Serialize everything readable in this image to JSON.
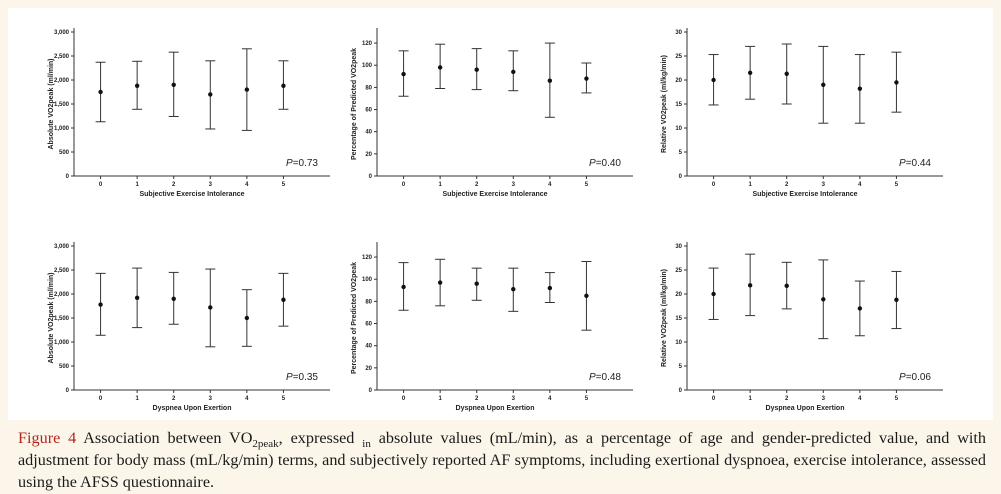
{
  "chart_data": [
    {
      "type": "errorbar",
      "panel": "top-left",
      "xlabel": "Subjective Exercise Intolerance",
      "ylabel": "Absolute VO2peak (ml/min)",
      "categories": [
        "0",
        "1",
        "2",
        "3",
        "4",
        "5"
      ],
      "means": [
        1750,
        1880,
        1900,
        1700,
        1800,
        1880
      ],
      "upper": [
        2370,
        2390,
        2580,
        2400,
        2650,
        2400
      ],
      "lower": [
        1130,
        1390,
        1240,
        980,
        950,
        1390
      ],
      "ylim": [
        0,
        3000
      ],
      "yticks": [
        0,
        500,
        1000,
        1500,
        2000,
        2500,
        3000
      ],
      "ytick_labels": [
        "0",
        "500",
        "1,000",
        "1,500",
        "2,000",
        "2,500",
        "3,000"
      ],
      "p_label": "P",
      "p_value": "=0.73"
    },
    {
      "type": "errorbar",
      "panel": "top-middle",
      "xlabel": "Subjective Exercise Intolerance",
      "ylabel": "Percentage of Predicted VO2peak",
      "categories": [
        "0",
        "1",
        "2",
        "3",
        "4",
        "5"
      ],
      "means": [
        92,
        98,
        96,
        94,
        86,
        88
      ],
      "upper": [
        113,
        119,
        115,
        113,
        120,
        102
      ],
      "lower": [
        72,
        79,
        78,
        77,
        53,
        75
      ],
      "ylim": [
        0,
        130
      ],
      "yticks": [
        0,
        20,
        40,
        60,
        80,
        100,
        120
      ],
      "ytick_labels": [
        "0",
        "20",
        "40",
        "60",
        "80",
        "100",
        "120"
      ],
      "p_label": "P",
      "p_value": "=0.40"
    },
    {
      "type": "errorbar",
      "panel": "top-right",
      "xlabel": "Subjective Exercise Intolerance",
      "ylabel": "Relative VO2peak (ml/kg/min)",
      "categories": [
        "0",
        "1",
        "2",
        "3",
        "4",
        "5"
      ],
      "means": [
        20,
        21.5,
        21.3,
        19,
        18.2,
        19.5
      ],
      "upper": [
        25.3,
        27,
        27.5,
        27,
        25.3,
        25.8
      ],
      "lower": [
        14.8,
        16,
        15,
        11,
        11,
        13.3
      ],
      "ylim": [
        0,
        30
      ],
      "yticks": [
        0,
        5,
        10,
        15,
        20,
        25,
        30
      ],
      "ytick_labels": [
        "0",
        "5",
        "10",
        "15",
        "20",
        "25",
        "30"
      ],
      "p_label": "P",
      "p_value": "=0.44"
    },
    {
      "type": "errorbar",
      "panel": "bottom-left",
      "xlabel": "Dyspnea Upon Exertion",
      "ylabel": "Absolute VO2peak (ml/min)",
      "categories": [
        "0",
        "1",
        "2",
        "3",
        "4",
        "5"
      ],
      "means": [
        1780,
        1920,
        1900,
        1720,
        1500,
        1880
      ],
      "upper": [
        2430,
        2540,
        2450,
        2520,
        2090,
        2430
      ],
      "lower": [
        1140,
        1300,
        1370,
        900,
        910,
        1330
      ],
      "ylim": [
        0,
        3000
      ],
      "yticks": [
        0,
        500,
        1000,
        1500,
        2000,
        2500,
        3000
      ],
      "ytick_labels": [
        "0",
        "500",
        "1,000",
        "1,500",
        "2,000",
        "2,500",
        "3,000"
      ],
      "p_label": "P",
      "p_value": "=0.35"
    },
    {
      "type": "errorbar",
      "panel": "bottom-middle",
      "xlabel": "Dyspnea Upon Exertion",
      "ylabel": "Percentage of Predicted VO2peak",
      "categories": [
        "0",
        "1",
        "2",
        "3",
        "4",
        "5"
      ],
      "means": [
        93,
        97,
        96,
        91,
        92,
        85
      ],
      "upper": [
        115,
        118,
        110,
        110,
        106,
        116
      ],
      "lower": [
        72,
        76,
        81,
        71,
        79,
        54
      ],
      "ylim": [
        0,
        130
      ],
      "yticks": [
        0,
        20,
        40,
        60,
        80,
        100,
        120
      ],
      "ytick_labels": [
        "0",
        "20",
        "40",
        "60",
        "80",
        "100",
        "120"
      ],
      "p_label": "P",
      "p_value": "=0.48"
    },
    {
      "type": "errorbar",
      "panel": "bottom-right",
      "xlabel": "Dyspnea Upon Exertion",
      "ylabel": "Relative VO2peak (ml/kg/min)",
      "categories": [
        "0",
        "1",
        "2",
        "3",
        "4",
        "5"
      ],
      "means": [
        20,
        21.8,
        21.7,
        18.9,
        17,
        18.8
      ],
      "upper": [
        25.4,
        28.3,
        26.6,
        27.1,
        22.7,
        24.7
      ],
      "lower": [
        14.7,
        15.5,
        16.9,
        10.7,
        11.3,
        12.8
      ],
      "ylim": [
        0,
        30
      ],
      "yticks": [
        0,
        5,
        10,
        15,
        20,
        25,
        30
      ],
      "ytick_labels": [
        "0",
        "5",
        "10",
        "15",
        "20",
        "25",
        "30"
      ],
      "p_label": "P",
      "p_value": "=0.06"
    }
  ],
  "caption": {
    "label": "Figure 4",
    "text_1": " Association between VO",
    "sub_1": "2peak",
    "text_2": ", expressed ",
    "sub_2": "in",
    "text_3": " absolute values (mL/min), as a percentage of age and gender-predicted value, and with adjustment for body mass (mL/kg/min) terms, and subjectively reported AF symptoms, including exertional dyspnoea, exercise intolerance, assessed using the AFSS questionnaire."
  }
}
